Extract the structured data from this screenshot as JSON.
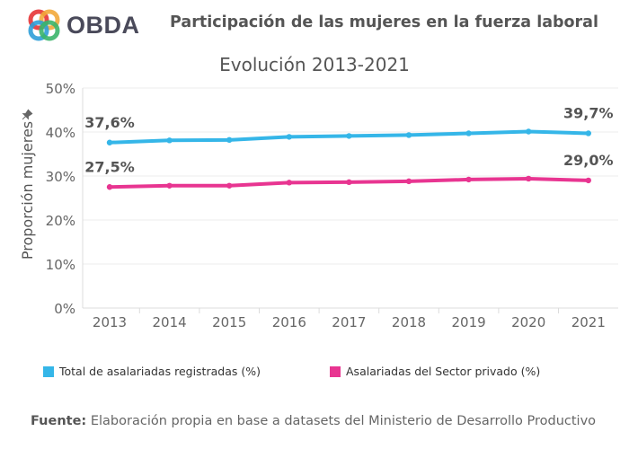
{
  "header": {
    "logo_text": "OBDA",
    "title": "Participación de las mujeres en la fuerza laboral"
  },
  "colors": {
    "series1": "#35b6e8",
    "series2": "#e83591"
  },
  "chart_data": {
    "type": "line",
    "title": "Evolución 2013-2021",
    "ylabel": "Proporción mujeres",
    "xlabel": "",
    "ylim": [
      0,
      50
    ],
    "yticks": [
      "0%",
      "10%",
      "20%",
      "30%",
      "40%",
      "50%"
    ],
    "categories": [
      "2013",
      "2014",
      "2015",
      "2016",
      "2017",
      "2018",
      "2019",
      "2020",
      "2021"
    ],
    "series": [
      {
        "name": "Total de asalariadas registradas (%)",
        "values": [
          37.6,
          38.1,
          38.2,
          38.9,
          39.1,
          39.3,
          39.7,
          40.1,
          39.7
        ],
        "labels": [
          {
            "index": 0,
            "text": "37,6%"
          },
          {
            "index": 8,
            "text": "39,7%"
          }
        ]
      },
      {
        "name": "Asalariadas del Sector privado (%)",
        "values": [
          27.5,
          27.8,
          27.8,
          28.5,
          28.6,
          28.8,
          29.2,
          29.4,
          29.0
        ],
        "labels": [
          {
            "index": 0,
            "text": "27,5%"
          },
          {
            "index": 8,
            "text": "29,0%"
          }
        ]
      }
    ]
  },
  "footer": {
    "source_label": "Fuente:",
    "source_text": " Elaboración propia en base a datasets del Ministerio de Desarrollo Productivo"
  }
}
